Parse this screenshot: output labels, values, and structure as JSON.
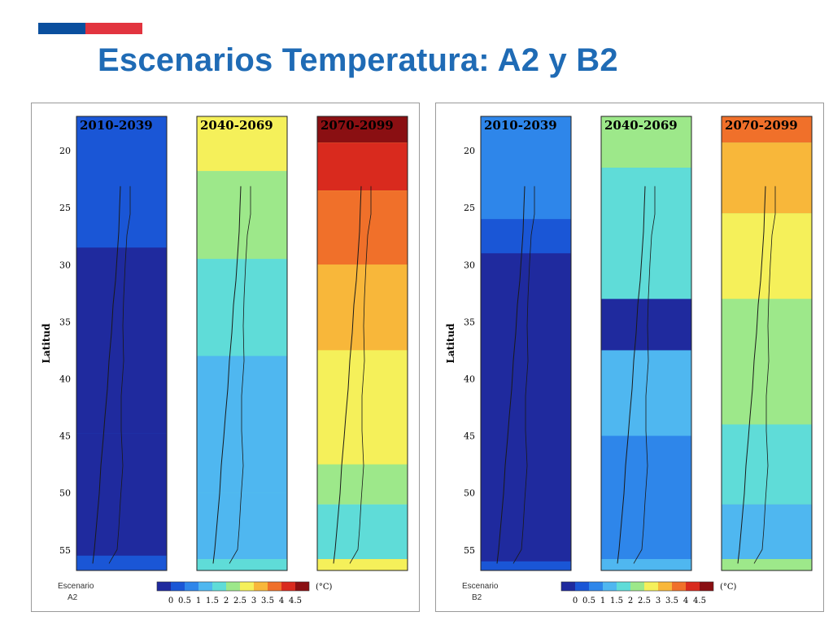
{
  "slide": {
    "title": "Escenarios Temperatura: A2 y B2",
    "brand_colors": {
      "flag_blue": "#0a4f9e",
      "flag_red": "#e2343f",
      "title_color": "#1f6bb5"
    }
  },
  "palette": [
    "#1f2a9e",
    "#1a56d6",
    "#2e86ea",
    "#4fb7f0",
    "#5fdcd8",
    "#9de88a",
    "#f5f05a",
    "#f8b73a",
    "#f0702a",
    "#d92a1e",
    "#8a0f12"
  ],
  "y_axis": {
    "label": "Latitud",
    "ticks": [
      "20",
      "25",
      "30",
      "35",
      "40",
      "45",
      "50",
      "55"
    ]
  },
  "colorbar": {
    "unit": "(°C)",
    "tick_labels": [
      "0",
      "0.5",
      "1",
      "1.5",
      "2",
      "2.5",
      "3",
      "3.5",
      "4",
      "4.5"
    ]
  },
  "scenarios": [
    {
      "id": "A2",
      "label_line1": "Escenario",
      "label_line2": "A2",
      "panels": [
        {
          "period": "2010-2039",
          "base": 1,
          "bands": [
            {
              "lat": [
                28.5,
                44.8
              ],
              "level": 0
            },
            {
              "lat": [
                44.8,
                55.5
              ],
              "level": 0
            }
          ]
        },
        {
          "period": "2040-2069",
          "base": 4,
          "bands": [
            {
              "lat": [
                17,
                21.8
              ],
              "level": 6
            },
            {
              "lat": [
                21.8,
                29.5
              ],
              "level": 5
            },
            {
              "lat": [
                29.5,
                38
              ],
              "level": 4
            },
            {
              "lat": [
                38,
                50
              ],
              "level": 3
            },
            {
              "lat": [
                50,
                55.8
              ],
              "level": 3
            }
          ]
        },
        {
          "period": "2070-2099",
          "base": 6,
          "bands": [
            {
              "lat": [
                17,
                19.3
              ],
              "level": 10
            },
            {
              "lat": [
                19.3,
                23.5
              ],
              "level": 9
            },
            {
              "lat": [
                23.5,
                30
              ],
              "level": 8
            },
            {
              "lat": [
                30,
                37.5
              ],
              "level": 7
            },
            {
              "lat": [
                37.5,
                47.5
              ],
              "level": 6
            },
            {
              "lat": [
                47.5,
                51
              ],
              "level": 5
            },
            {
              "lat": [
                51,
                55.8
              ],
              "level": 4
            }
          ]
        }
      ]
    },
    {
      "id": "B2",
      "label_line1": "Escenario",
      "label_line2": "B2",
      "panels": [
        {
          "period": "2010-2039",
          "base": 1,
          "bands": [
            {
              "lat": [
                17,
                26
              ],
              "level": 2
            },
            {
              "lat": [
                29,
                56
              ],
              "level": 0
            }
          ]
        },
        {
          "period": "2040-2069",
          "base": 3,
          "bands": [
            {
              "lat": [
                17,
                21.5
              ],
              "level": 5
            },
            {
              "lat": [
                21.5,
                33
              ],
              "level": 4
            },
            {
              "lat": [
                33,
                37.5
              ],
              "level": 0
            },
            {
              "lat": [
                45,
                55.8
              ],
              "level": 2
            }
          ]
        },
        {
          "period": "2070-2099",
          "base": 5,
          "bands": [
            {
              "lat": [
                17,
                19.3
              ],
              "level": 8
            },
            {
              "lat": [
                19.3,
                25.5
              ],
              "level": 7
            },
            {
              "lat": [
                25.5,
                33
              ],
              "level": 6
            },
            {
              "lat": [
                33,
                44
              ],
              "level": 5
            },
            {
              "lat": [
                44,
                51
              ],
              "level": 4
            },
            {
              "lat": [
                51,
                55.8
              ],
              "level": 3
            }
          ]
        }
      ]
    }
  ]
}
